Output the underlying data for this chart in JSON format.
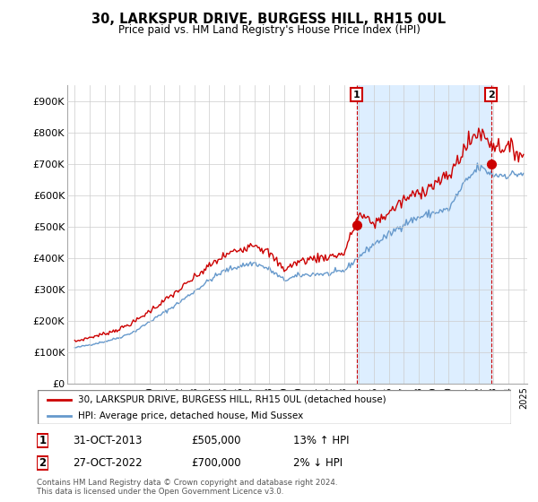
{
  "title": "30, LARKSPUR DRIVE, BURGESS HILL, RH15 0UL",
  "subtitle": "Price paid vs. HM Land Registry's House Price Index (HPI)",
  "ylabel_ticks": [
    "£0",
    "£100K",
    "£200K",
    "£300K",
    "£400K",
    "£500K",
    "£600K",
    "£700K",
    "£800K",
    "£900K"
  ],
  "ytick_values": [
    0,
    100000,
    200000,
    300000,
    400000,
    500000,
    600000,
    700000,
    800000,
    900000
  ],
  "ylim": [
    0,
    950000
  ],
  "red_line_color": "#cc0000",
  "blue_line_color": "#6699cc",
  "fill_color": "#ddeeff",
  "grid_color": "#cccccc",
  "background_color": "#ffffff",
  "transaction1": {
    "date": "31-OCT-2013",
    "price": 505000,
    "hpi_change": "13%",
    "direction": "↑"
  },
  "transaction2": {
    "date": "27-OCT-2022",
    "price": 700000,
    "hpi_change": "2%",
    "direction": "↓"
  },
  "legend_label_red": "30, LARKSPUR DRIVE, BURGESS HILL, RH15 0UL (detached house)",
  "legend_label_blue": "HPI: Average price, detached house, Mid Sussex",
  "footnote": "Contains HM Land Registry data © Crown copyright and database right 2024.\nThis data is licensed under the Open Government Licence v3.0.",
  "transaction1_x": 2013.833,
  "transaction2_x": 2022.833,
  "marker1_y": 505000,
  "marker2_y": 700000,
  "xmin": 1995.0,
  "xmax": 2025.25
}
